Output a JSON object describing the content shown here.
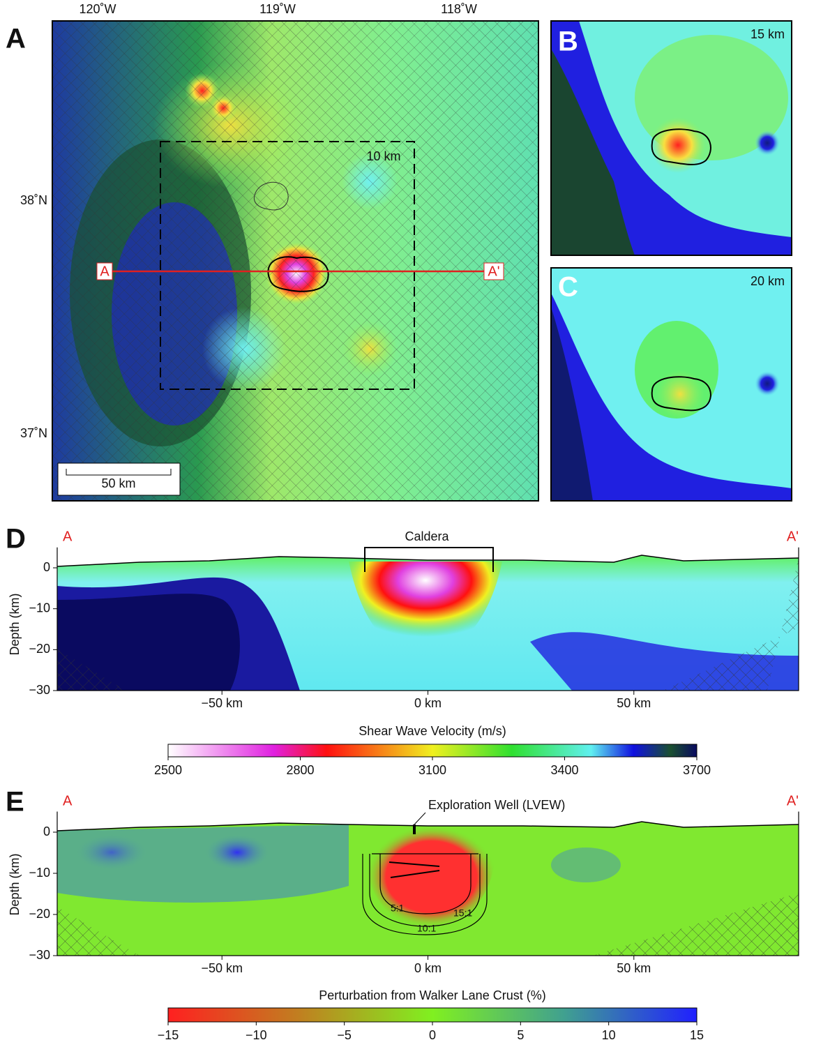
{
  "panel_a": {
    "label": "A",
    "lon_ticks": [
      "120˚W",
      "119˚W",
      "118˚W"
    ],
    "lat_ticks": [
      "38˚N",
      "37˚N"
    ],
    "box_label": "10 km",
    "scale_bar": "50 km",
    "profile_start": "A",
    "profile_end": "A'"
  },
  "panel_b": {
    "label": "B",
    "depth": "15 km"
  },
  "panel_c": {
    "label": "C",
    "depth": "20 km"
  },
  "panel_d": {
    "label": "D",
    "start": "A",
    "end": "A'",
    "annotation": "Caldera",
    "y_label": "Depth (km)",
    "xlim": [
      -90,
      90
    ],
    "ylim": [
      -30,
      5
    ],
    "xticks": [
      {
        "value": -50,
        "label": "−50 km"
      },
      {
        "value": 0,
        "label": "0 km"
      },
      {
        "value": 50,
        "label": "50 km"
      }
    ],
    "yticks": [
      0,
      {
        "value": -10,
        "label": "−10"
      },
      {
        "value": -20,
        "label": "−20"
      },
      {
        "value": -30,
        "label": "−30"
      }
    ],
    "colorbar": {
      "title": "Shear Wave Velocity (m/s)",
      "range": [
        2500,
        3700
      ],
      "ticks": [
        2500,
        2800,
        3100,
        3400,
        3700
      ]
    }
  },
  "panel_e": {
    "label": "E",
    "start": "A",
    "end": "A'",
    "annotation": "Exploration Well (LVEW)",
    "y_label": "Depth (km)",
    "contour_labels": [
      "5:1",
      "10:1",
      "15:1"
    ],
    "xlim": [
      -90,
      90
    ],
    "ylim": [
      -30,
      5
    ],
    "xticks": [
      {
        "value": -50,
        "label": "−50 km"
      },
      {
        "value": 0,
        "label": "0 km"
      },
      {
        "value": 50,
        "label": "50 km"
      }
    ],
    "yticks": [
      0,
      {
        "value": -10,
        "label": "−10"
      },
      {
        "value": -20,
        "label": "−20"
      },
      {
        "value": -30,
        "label": "−30"
      }
    ],
    "colorbar": {
      "title": "Perturbation from Walker Lane Crust (%)",
      "range": [
        -15,
        15
      ],
      "ticks": [
        {
          "value": -15,
          "label": "−15"
        },
        {
          "value": -10,
          "label": "−10"
        },
        {
          "value": -5,
          "label": "−5"
        },
        0,
        5,
        10,
        15
      ]
    }
  }
}
